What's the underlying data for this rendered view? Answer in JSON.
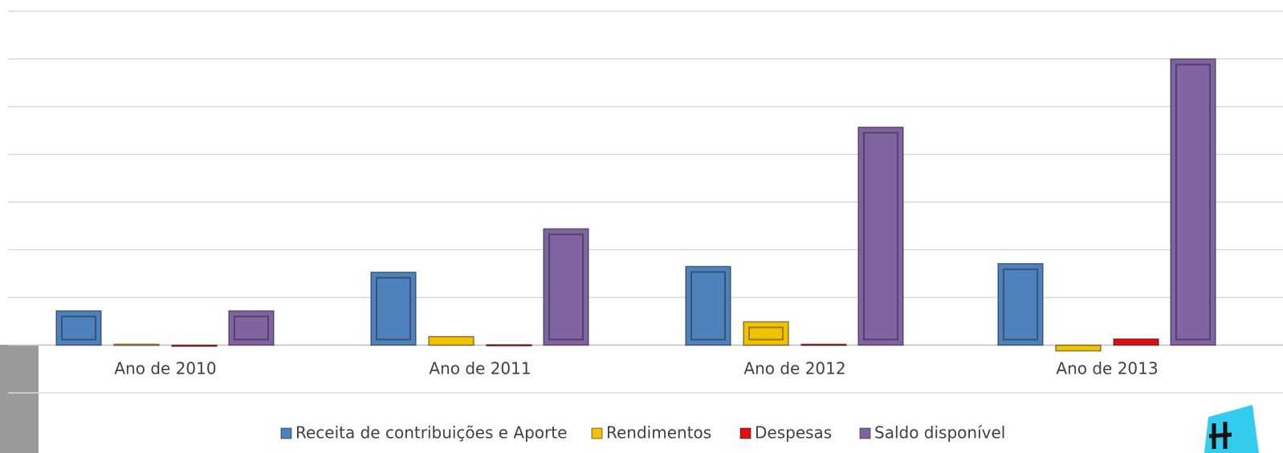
{
  "chart_data": {
    "type": "bar",
    "categories": [
      "Ano de 2010",
      "Ano de 2011",
      "Ano de 2012",
      "Ano de 2013"
    ],
    "series": [
      {
        "name": "Receita de contribuições e Aporte",
        "color": "#4f81bd",
        "values": [
          0.72,
          1.53,
          1.65,
          1.71
        ]
      },
      {
        "name": "Rendimentos",
        "color": "#f2c100",
        "values": [
          0.02,
          0.18,
          0.49,
          -0.12
        ]
      },
      {
        "name": "Despesas",
        "color": "#e01010",
        "values": [
          -0.01,
          0.01,
          0.02,
          0.13
        ]
      },
      {
        "name": "Saldo disponível",
        "color": "#8064a2",
        "values": [
          0.72,
          2.44,
          4.57,
          6.0
        ]
      }
    ],
    "ylim": [
      -1,
      7
    ],
    "yticks": [
      -1,
      0,
      1,
      2,
      3,
      4,
      5,
      6,
      7
    ],
    "grid": true,
    "legend": "bottom"
  }
}
